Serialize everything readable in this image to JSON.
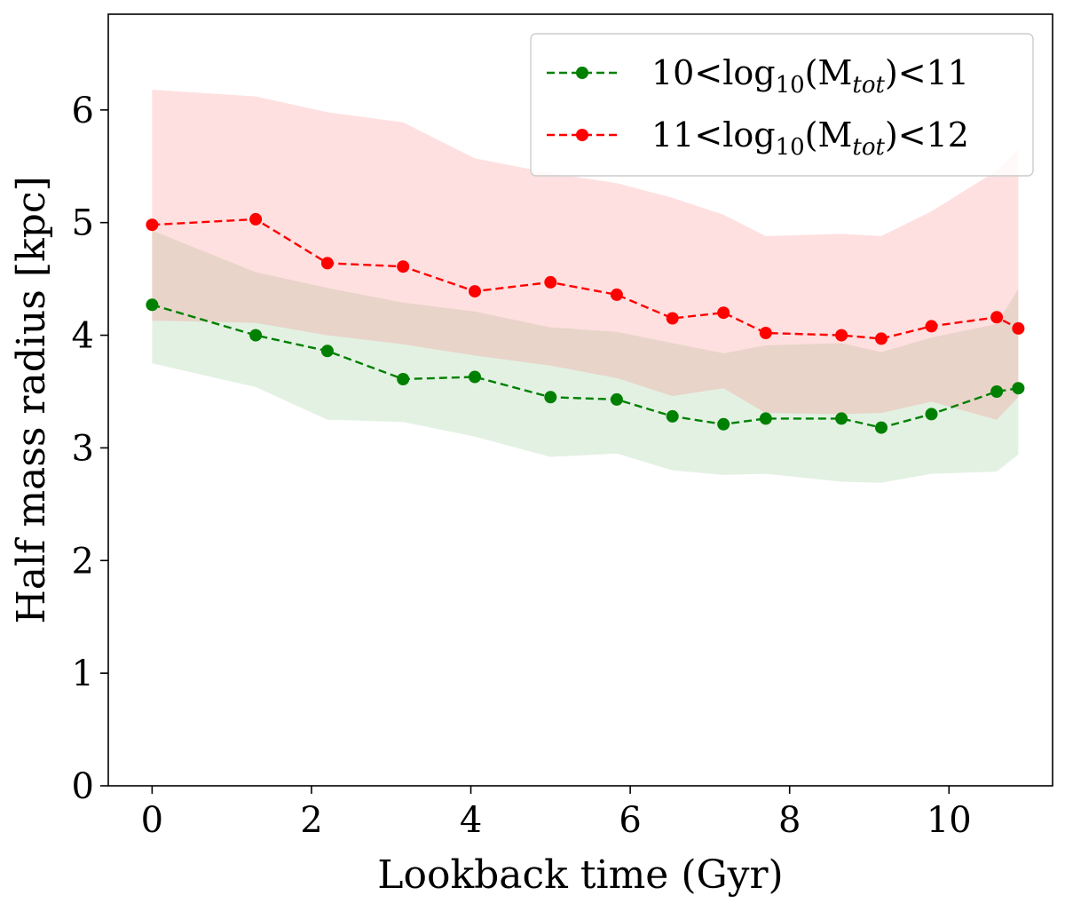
{
  "chart_data": {
    "type": "line",
    "title": "",
    "xlabel": "Lookback time (Gyr)",
    "ylabel": "Half mass radius [kpc]",
    "xlim": [
      -0.55,
      11.3
    ],
    "ylim": [
      0,
      6.85
    ],
    "xticks": [
      0,
      2,
      4,
      6,
      8,
      10
    ],
    "yticks": [
      0,
      1,
      2,
      3,
      4,
      5,
      6
    ],
    "xtick_labels": [
      "0",
      "2",
      "4",
      "6",
      "8",
      "10"
    ],
    "ytick_labels": [
      "0",
      "1",
      "2",
      "3",
      "4",
      "5",
      "6"
    ],
    "grid": false,
    "legend_position": "top-right",
    "series": [
      {
        "name": "10<log10(Mtot)<11",
        "legend": {
          "pre": "10<log",
          "sub1": "10",
          "mid": "(M",
          "sub2": "tot",
          "post": ")<11"
        },
        "color": "#008000",
        "band_color": "#008000",
        "x": [
          0,
          1.3,
          2.2,
          3.15,
          4.05,
          5.0,
          5.83,
          6.53,
          7.17,
          7.7,
          8.65,
          9.15,
          9.78,
          10.6,
          10.87
        ],
        "y": [
          4.27,
          4.0,
          3.86,
          3.61,
          3.63,
          3.45,
          3.43,
          3.28,
          3.21,
          3.26,
          3.26,
          3.18,
          3.3,
          3.5,
          3.53
        ],
        "upper": [
          4.93,
          4.56,
          4.42,
          4.29,
          4.21,
          4.07,
          4.03,
          3.93,
          3.84,
          3.91,
          3.93,
          3.85,
          3.98,
          4.1,
          4.41
        ],
        "lower": [
          3.75,
          3.54,
          3.25,
          3.23,
          3.1,
          2.92,
          2.95,
          2.8,
          2.76,
          2.77,
          2.7,
          2.69,
          2.77,
          2.79,
          2.94
        ]
      },
      {
        "name": "11<log10(Mtot)<12",
        "legend": {
          "pre": "11<log",
          "sub1": "10",
          "mid": "(M",
          "sub2": "tot",
          "post": ")<12"
        },
        "color": "#ff0000",
        "band_color": "#ff5555",
        "x": [
          0,
          1.3,
          2.2,
          3.15,
          4.05,
          5.0,
          5.83,
          6.53,
          7.17,
          7.7,
          8.65,
          9.15,
          9.78,
          10.6,
          10.87
        ],
        "y": [
          4.98,
          5.03,
          4.64,
          4.61,
          4.39,
          4.47,
          4.36,
          4.15,
          4.2,
          4.02,
          4.0,
          3.97,
          4.08,
          4.16,
          4.06
        ],
        "upper": [
          6.18,
          6.12,
          5.98,
          5.89,
          5.57,
          5.44,
          5.35,
          5.22,
          5.07,
          4.88,
          4.9,
          4.88,
          5.1,
          5.46,
          5.65
        ],
        "lower": [
          4.13,
          4.11,
          4.0,
          3.92,
          3.82,
          3.73,
          3.62,
          3.46,
          3.53,
          3.31,
          3.3,
          3.31,
          3.41,
          3.25,
          3.45
        ]
      }
    ]
  }
}
